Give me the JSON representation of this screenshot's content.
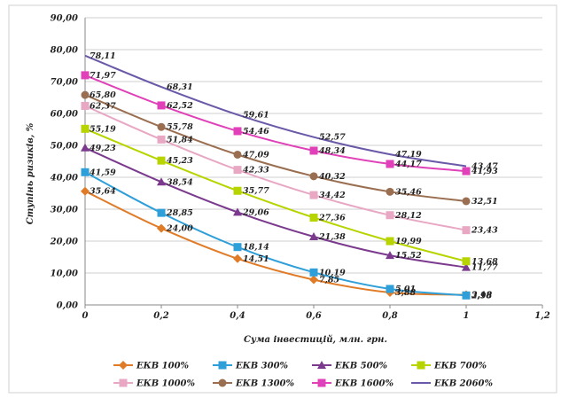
{
  "chart_data": {
    "type": "line",
    "title": "",
    "xlabel": "Сума інвестицій, млн. грн.",
    "ylabel": "Ступінь ризиків, %",
    "xlim": [
      0,
      1.2
    ],
    "ylim": [
      0,
      90
    ],
    "x_ticks": [
      "0",
      "0,2",
      "0,4",
      "0,6",
      "0,8",
      "1",
      "1,2"
    ],
    "y_ticks": [
      "0,00",
      "10,00",
      "20,00",
      "30,00",
      "40,00",
      "50,00",
      "60,00",
      "70,00",
      "80,00",
      "90,00"
    ],
    "grid": "horizontal",
    "legend_position": "bottom",
    "x": [
      0,
      0.2,
      0.4,
      0.6,
      0.8,
      1.0
    ],
    "series": [
      {
        "name": "ЕКВ 100%",
        "color": "#e07b28",
        "marker": "diamond",
        "values": [
          35.64,
          24.0,
          14.51,
          7.9,
          3.9,
          3.18
        ],
        "labels": [
          "35,64",
          "24,00",
          "14,51",
          "7,85",
          "3,88",
          "3,18"
        ]
      },
      {
        "name": "ЕКВ 300%",
        "color": "#2e9fd8",
        "marker": "square",
        "values": [
          41.59,
          28.85,
          18.14,
          10.19,
          5.01,
          2.98
        ],
        "labels": [
          "41,59",
          "28,85",
          "18,14",
          "10,19",
          "5,01",
          "2,98"
        ]
      },
      {
        "name": "ЕКВ 500%",
        "color": "#7b3a8e",
        "marker": "triangle",
        "values": [
          49.23,
          38.54,
          29.06,
          21.38,
          15.52,
          11.77
        ],
        "labels": [
          "49,23",
          "38,54",
          "29,06",
          "21,38",
          "15,52",
          "11,77"
        ]
      },
      {
        "name": "ЕКВ 700%",
        "color": "#b7d400",
        "marker": "square",
        "values": [
          55.19,
          45.23,
          35.77,
          27.36,
          19.99,
          13.68
        ],
        "labels": [
          "55,19",
          "45,23",
          "35,77",
          "27,36",
          "19,99",
          "13,68"
        ]
      },
      {
        "name": "ЕКВ 1000%",
        "color": "#e8a8c4",
        "marker": "square",
        "values": [
          62.37,
          51.84,
          42.33,
          34.42,
          28.12,
          23.43
        ],
        "labels": [
          "62,37",
          "51,84",
          "42,33",
          "34,42",
          "28,12",
          "23,43"
        ]
      },
      {
        "name": "ЕКВ 1300%",
        "color": "#9a6e50",
        "marker": "circle",
        "values": [
          65.8,
          55.78,
          47.09,
          40.32,
          35.46,
          32.51
        ],
        "labels": [
          "65,80",
          "55,78",
          "47,09",
          "40,32",
          "35,46",
          "32,51"
        ]
      },
      {
        "name": "ЕКВ 1600%",
        "color": "#e040b8",
        "marker": "square",
        "values": [
          71.97,
          62.52,
          54.46,
          48.34,
          44.17,
          41.93
        ],
        "labels": [
          "71,97",
          "62,52",
          "54,46",
          "48,34",
          "44,17",
          "41,93"
        ]
      },
      {
        "name": "ЕКВ 2060%",
        "color": "#6a58a8",
        "marker": "none",
        "values": [
          78.11,
          68.31,
          59.61,
          52.57,
          47.19,
          43.47
        ],
        "labels": [
          "78,11",
          "68,31",
          "59,61",
          "52,57",
          "47,19",
          "43,47"
        ]
      }
    ]
  }
}
